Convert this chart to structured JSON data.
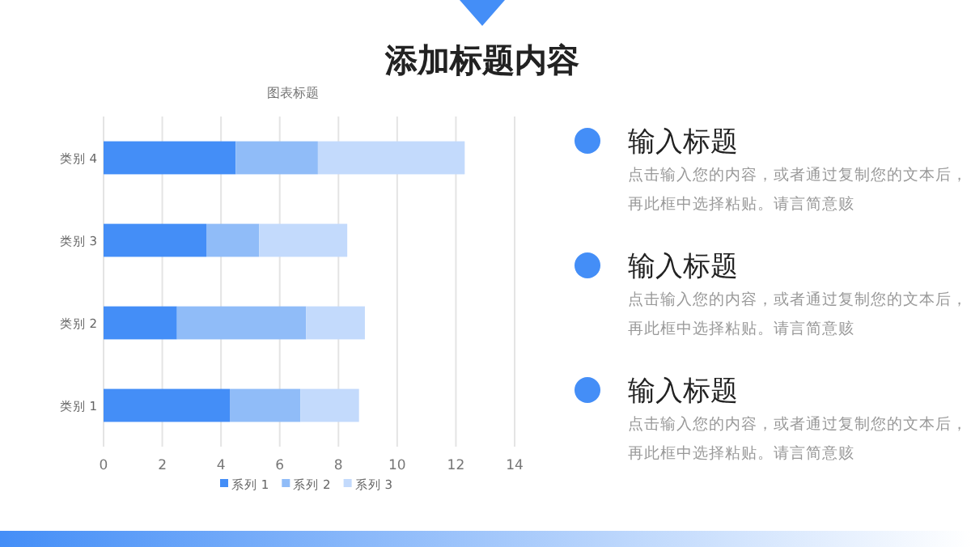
{
  "chart_data": {
    "type": "bar",
    "orientation": "horizontal",
    "stacked": true,
    "title": "添加标题内容",
    "subtitle": "图表标题",
    "categories": [
      "类别 4",
      "类别 3",
      "类别 2",
      "类别 1"
    ],
    "series": [
      {
        "name": "系列 1",
        "color": "#448ef7",
        "values": [
          4.5,
          3.5,
          2.5,
          4.3
        ]
      },
      {
        "name": "系列 2",
        "color": "#90bcf8",
        "values": [
          2.8,
          1.8,
          4.4,
          2.4
        ]
      },
      {
        "name": "系列 3",
        "color": "#c3dafc",
        "values": [
          5,
          3,
          2,
          2
        ]
      }
    ],
    "xlim": [
      0,
      14
    ],
    "xticks": [
      0,
      2,
      4,
      6,
      8,
      10,
      12,
      14
    ],
    "grid": "x",
    "legend": "bottom",
    "annotations": [
      "输入标题",
      "点击输入您的内容，或者通过复制您的文本后，再此框中选择粘贴。请言简意赅",
      "输入标题",
      "点击输入您的内容，或者通过复制您的文本后，再此框中选择粘贴。请言简意赅",
      "输入标题",
      "点击输入您的内容，或者通过复制您的文本后，再此框中选择粘贴。请言简意赅"
    ]
  }
}
